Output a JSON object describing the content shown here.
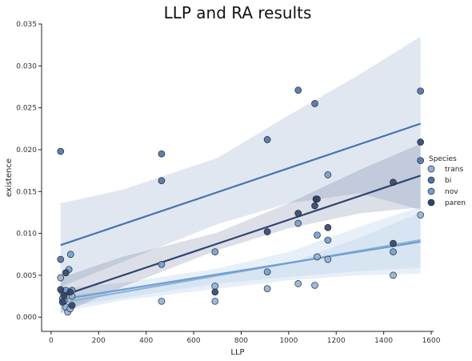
{
  "chart_data": {
    "type": "scatter",
    "title": "LLP and RA results",
    "xlabel": "LLP",
    "ylabel": "existence",
    "xlim": [
      -40,
      1610
    ],
    "ylim": [
      -0.0017,
      0.035
    ],
    "xticks": [
      0,
      200,
      400,
      600,
      800,
      1000,
      1200,
      1400,
      1600
    ],
    "yticks": [
      0.0,
      0.005,
      0.01,
      0.015,
      0.02,
      0.025,
      0.03,
      0.035
    ],
    "xtick_labels": [
      "0",
      "200",
      "400",
      "600",
      "800",
      "1000",
      "1200",
      "1400",
      "1600"
    ],
    "ytick_labels": [
      "0.000",
      "0.005",
      "0.010",
      "0.015",
      "0.020",
      "0.025",
      "0.030",
      "0.035"
    ],
    "grid": false,
    "legend": {
      "title": "Species",
      "placement": "right"
    },
    "series": [
      {
        "name": "trans",
        "color": "#8fb3d8",
        "points": [
          [
            40,
            0.0047
          ],
          [
            48,
            0.003
          ],
          [
            55,
            0.002
          ],
          [
            62,
            0.0012
          ],
          [
            70,
            0.0006
          ],
          [
            80,
            0.001
          ],
          [
            88,
            0.0025
          ],
          [
            465,
            0.0019
          ],
          [
            690,
            0.0037
          ],
          [
            690,
            0.0019
          ],
          [
            910,
            0.0034
          ],
          [
            1040,
            0.004
          ],
          [
            1110,
            0.0038
          ],
          [
            1120,
            0.0072
          ],
          [
            1165,
            0.0069
          ],
          [
            1440,
            0.005
          ],
          [
            1555,
            0.0122
          ]
        ],
        "fit": [
          [
            40,
            0.0017
          ],
          [
            1555,
            0.0092
          ]
        ],
        "band_lower": [
          [
            40,
            0.0011
          ],
          [
            300,
            0.0023
          ],
          [
            700,
            0.004
          ],
          [
            1000,
            0.0048
          ],
          [
            1300,
            0.0055
          ],
          [
            1555,
            0.0059
          ]
        ],
        "band_upper": [
          [
            40,
            0.0025
          ],
          [
            300,
            0.0033
          ],
          [
            700,
            0.0048
          ],
          [
            1000,
            0.0064
          ],
          [
            1300,
            0.0095
          ],
          [
            1555,
            0.0125
          ]
        ]
      },
      {
        "name": "bi",
        "color": "#4a72ad",
        "points": [
          [
            40,
            0.0198
          ],
          [
            40,
            0.0069
          ],
          [
            465,
            0.0195
          ],
          [
            465,
            0.0163
          ],
          [
            910,
            0.0212
          ],
          [
            1040,
            0.0271
          ],
          [
            1110,
            0.0255
          ],
          [
            1555,
            0.027
          ],
          [
            1555,
            0.0187
          ]
        ],
        "fit": [
          [
            40,
            0.0086
          ],
          [
            1555,
            0.0231
          ]
        ],
        "band_lower": [
          [
            40,
            0.0036
          ],
          [
            300,
            0.0066
          ],
          [
            700,
            0.0111
          ],
          [
            1000,
            0.0136
          ],
          [
            1300,
            0.0148
          ],
          [
            1555,
            0.0128
          ]
        ],
        "band_upper": [
          [
            40,
            0.0136
          ],
          [
            300,
            0.0152
          ],
          [
            700,
            0.019
          ],
          [
            1000,
            0.0241
          ],
          [
            1300,
            0.029
          ],
          [
            1555,
            0.0335
          ]
        ]
      },
      {
        "name": "nov",
        "color": "#6f9fd3",
        "points": [
          [
            48,
            0.0022
          ],
          [
            62,
            0.0032
          ],
          [
            75,
            0.0057
          ],
          [
            82,
            0.0075
          ],
          [
            88,
            0.0032
          ],
          [
            465,
            0.0063
          ],
          [
            690,
            0.0078
          ],
          [
            910,
            0.0054
          ],
          [
            1040,
            0.0112
          ],
          [
            1120,
            0.0098
          ],
          [
            1165,
            0.017
          ],
          [
            1165,
            0.0092
          ],
          [
            1440,
            0.0078
          ]
        ],
        "fit": [
          [
            40,
            0.0021
          ],
          [
            1555,
            0.009
          ]
        ],
        "band_lower": [
          [
            40,
            0.0006
          ],
          [
            300,
            0.002
          ],
          [
            700,
            0.0034
          ],
          [
            1000,
            0.0044
          ],
          [
            1300,
            0.005
          ],
          [
            1555,
            0.0052
          ]
        ],
        "band_upper": [
          [
            40,
            0.0034
          ],
          [
            300,
            0.0041
          ],
          [
            700,
            0.0058
          ],
          [
            1000,
            0.0078
          ],
          [
            1300,
            0.0108
          ],
          [
            1555,
            0.0132
          ]
        ]
      },
      {
        "name": "paren",
        "color": "#2e4470",
        "points": [
          [
            40,
            0.0033
          ],
          [
            48,
            0.0018
          ],
          [
            55,
            0.0026
          ],
          [
            62,
            0.0053
          ],
          [
            80,
            0.003
          ],
          [
            88,
            0.0014
          ],
          [
            690,
            0.003
          ],
          [
            910,
            0.0102
          ],
          [
            1040,
            0.0124
          ],
          [
            1110,
            0.0133
          ],
          [
            1115,
            0.0141
          ],
          [
            1120,
            0.0141
          ],
          [
            1165,
            0.0107
          ],
          [
            1440,
            0.0161
          ],
          [
            1440,
            0.0088
          ],
          [
            1555,
            0.0209
          ]
        ],
        "fit": [
          [
            40,
            0.0025
          ],
          [
            1555,
            0.0169
          ]
        ],
        "band_lower": [
          [
            40,
            0.0004
          ],
          [
            300,
            0.0036
          ],
          [
            700,
            0.008
          ],
          [
            1000,
            0.0106
          ],
          [
            1300,
            0.0124
          ],
          [
            1555,
            0.0131
          ]
        ],
        "band_upper": [
          [
            40,
            0.0047
          ],
          [
            300,
            0.0072
          ],
          [
            700,
            0.0101
          ],
          [
            1000,
            0.0136
          ],
          [
            1300,
            0.0176
          ],
          [
            1555,
            0.0207
          ]
        ]
      }
    ]
  }
}
